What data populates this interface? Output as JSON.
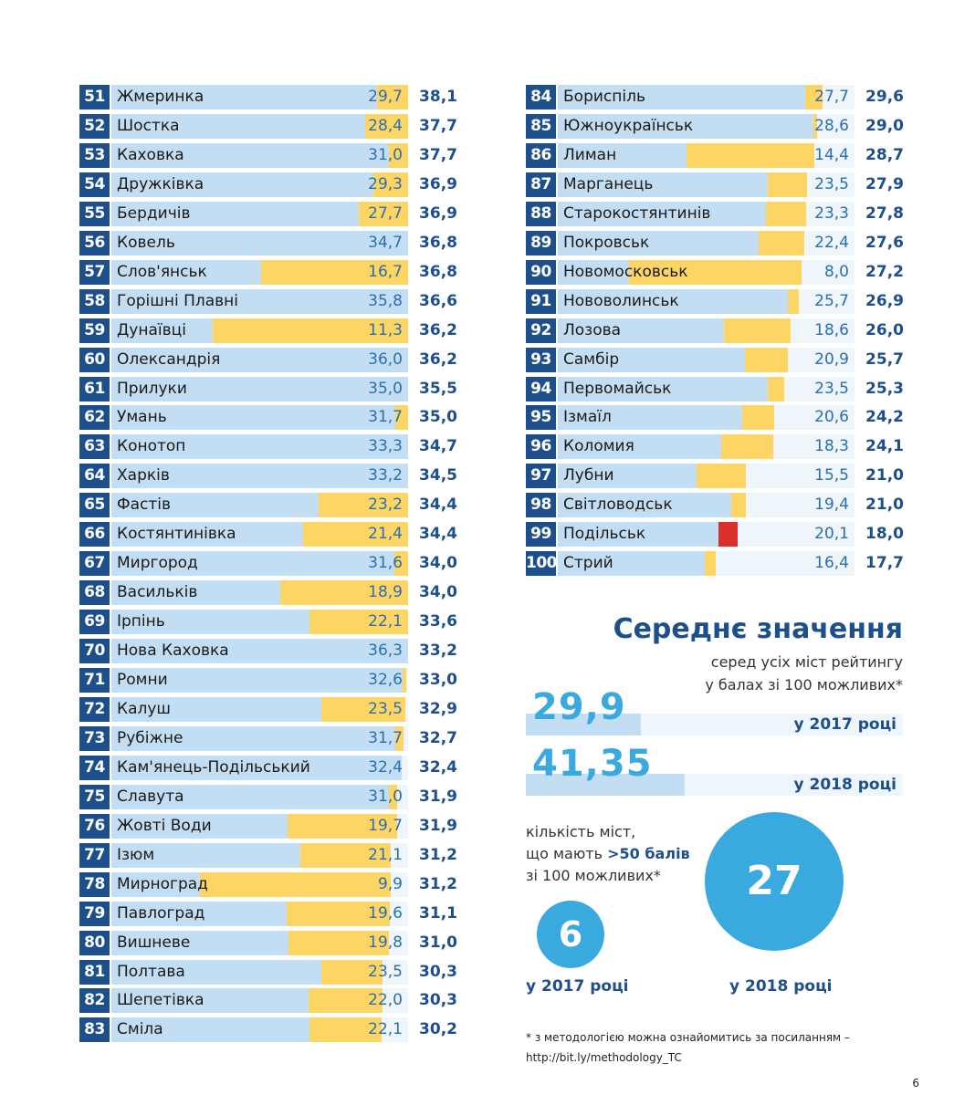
{
  "chart_data": {
    "type": "table",
    "columns": [
      "rank",
      "city",
      "2017",
      "2018"
    ],
    "rows": [
      {
        "rank": "51",
        "city": "Жмеринка",
        "v2017": "29,7",
        "v2018": "38,1"
      },
      {
        "rank": "52",
        "city": "Шостка",
        "v2017": "28,4",
        "v2018": "37,7"
      },
      {
        "rank": "53",
        "city": "Каховка",
        "v2017": "31,0",
        "v2018": "37,7"
      },
      {
        "rank": "54",
        "city": "Дружківка",
        "v2017": "29,3",
        "v2018": "36,9"
      },
      {
        "rank": "55",
        "city": "Бердичів",
        "v2017": "27,7",
        "v2018": "36,9"
      },
      {
        "rank": "56",
        "city": "Ковель",
        "v2017": "34,7",
        "v2018": "36,8"
      },
      {
        "rank": "57",
        "city": "Слов'янськ",
        "v2017": "16,7",
        "v2018": "36,8"
      },
      {
        "rank": "58",
        "city": "Горішні Плавні",
        "v2017": "35,8",
        "v2018": "36,6"
      },
      {
        "rank": "59",
        "city": "Дунаївці",
        "v2017": "11,3",
        "v2018": "36,2"
      },
      {
        "rank": "60",
        "city": "Олександрія",
        "v2017": "36,0",
        "v2018": "36,2"
      },
      {
        "rank": "61",
        "city": "Прилуки",
        "v2017": "35,0",
        "v2018": "35,5"
      },
      {
        "rank": "62",
        "city": "Умань",
        "v2017": "31,7",
        "v2018": "35,0"
      },
      {
        "rank": "63",
        "city": "Конотоп",
        "v2017": "33,3",
        "v2018": "34,7"
      },
      {
        "rank": "64",
        "city": "Харків",
        "v2017": "33,2",
        "v2018": "34,5"
      },
      {
        "rank": "65",
        "city": "Фастів",
        "v2017": "23,2",
        "v2018": "34,4"
      },
      {
        "rank": "66",
        "city": "Костянтинівка",
        "v2017": "21,4",
        "v2018": "34,4"
      },
      {
        "rank": "67",
        "city": "Миргород",
        "v2017": "31,6",
        "v2018": "34,0"
      },
      {
        "rank": "68",
        "city": "Васильків",
        "v2017": "18,9",
        "v2018": "34,0"
      },
      {
        "rank": "69",
        "city": "Ірпінь",
        "v2017": "22,1",
        "v2018": "33,6"
      },
      {
        "rank": "70",
        "city": "Нова Каховка",
        "v2017": "36,3",
        "v2018": "33,2"
      },
      {
        "rank": "71",
        "city": "Ромни",
        "v2017": "32,6",
        "v2018": "33,0"
      },
      {
        "rank": "72",
        "city": "Калуш",
        "v2017": "23,5",
        "v2018": "32,9"
      },
      {
        "rank": "73",
        "city": "Рубіжне",
        "v2017": "31,7",
        "v2018": "32,7"
      },
      {
        "rank": "74",
        "city": "Кам'янець-Подільський",
        "v2017": "32,4",
        "v2018": "32,4"
      },
      {
        "rank": "75",
        "city": "Славута",
        "v2017": "31,0",
        "v2018": "31,9"
      },
      {
        "rank": "76",
        "city": "Жовті Води",
        "v2017": "19,7",
        "v2018": "31,9"
      },
      {
        "rank": "77",
        "city": "Ізюм",
        "v2017": "21,1",
        "v2018": "31,2"
      },
      {
        "rank": "78",
        "city": "Мирноград",
        "v2017": "9,9",
        "v2018": "31,2"
      },
      {
        "rank": "79",
        "city": "Павлоград",
        "v2017": "19,6",
        "v2018": "31,1"
      },
      {
        "rank": "80",
        "city": "Вишневе",
        "v2017": "19,8",
        "v2018": "31,0"
      },
      {
        "rank": "81",
        "city": "Полтава",
        "v2017": "23,5",
        "v2018": "30,3"
      },
      {
        "rank": "82",
        "city": "Шепетівка",
        "v2017": "22,0",
        "v2018": "30,3"
      },
      {
        "rank": "83",
        "city": "Сміла",
        "v2017": "22,1",
        "v2018": "30,2"
      },
      {
        "rank": "84",
        "city": "Бориспіль",
        "v2017": "27,7",
        "v2018": "29,6"
      },
      {
        "rank": "85",
        "city": "Южноукраїнськ",
        "v2017": "28,6",
        "v2018": "29,0"
      },
      {
        "rank": "86",
        "city": "Лиман",
        "v2017": "14,4",
        "v2018": "28,7"
      },
      {
        "rank": "87",
        "city": "Марганець",
        "v2017": "23,5",
        "v2018": "27,9"
      },
      {
        "rank": "88",
        "city": "Старокостянтинів",
        "v2017": "23,3",
        "v2018": "27,8"
      },
      {
        "rank": "89",
        "city": "Покровськ",
        "v2017": "22,4",
        "v2018": "27,6"
      },
      {
        "rank": "90",
        "city": "Новомосковськ",
        "v2017": "8,0",
        "v2018": "27,2"
      },
      {
        "rank": "91",
        "city": "Нововолинськ",
        "v2017": "25,7",
        "v2018": "26,9"
      },
      {
        "rank": "92",
        "city": "Лозова",
        "v2017": "18,6",
        "v2018": "26,0"
      },
      {
        "rank": "93",
        "city": "Самбір",
        "v2017": "20,9",
        "v2018": "25,7"
      },
      {
        "rank": "94",
        "city": "Первомайськ",
        "v2017": "23,5",
        "v2018": "25,3"
      },
      {
        "rank": "95",
        "city": "Ізмаїл",
        "v2017": "20,6",
        "v2018": "24,2"
      },
      {
        "rank": "96",
        "city": "Коломия",
        "v2017": "18,3",
        "v2018": "24,1"
      },
      {
        "rank": "97",
        "city": "Лубни",
        "v2017": "15,5",
        "v2018": "21,0"
      },
      {
        "rank": "98",
        "city": "Світловодськ",
        "v2017": "19,4",
        "v2018": "21,0"
      },
      {
        "rank": "99",
        "city": "Подільськ",
        "v2017": "20,1",
        "v2018": "18,0"
      },
      {
        "rank": "100",
        "city": "Стрий",
        "v2017": "16,4",
        "v2018": "17,7"
      }
    ],
    "bar_scale_max": 100
  },
  "colors": {
    "rank_bg": "#1d4f8c",
    "bar_2017": "#c3def2",
    "increase": "#fdd564",
    "decrease": "#d9312a",
    "accent": "#3aa9e0"
  },
  "average": {
    "title": "Середнє значення",
    "subtitle_line1": "серед усіх міст рейтингу",
    "subtitle_line2": "у балах зі 100 можливих*",
    "y2017_value": "29,9",
    "y2017_label": "у 2017 році",
    "y2018_value": "41,35",
    "y2018_label": "у 2018 році"
  },
  "count": {
    "line1": "кількість міст,",
    "line2_prefix": "що мають",
    "line2_highlight": ">50 балів",
    "line3": "зі 100 можливих*",
    "y2017_value": "6",
    "y2017_label": "у 2017 році",
    "y2018_value": "27",
    "y2018_label": "у 2018 році"
  },
  "footnote": {
    "line1": "* з методологією можна ознайомитись за посиланням –",
    "line2": "http://bit.ly/methodology_TC"
  },
  "page_number": "6"
}
